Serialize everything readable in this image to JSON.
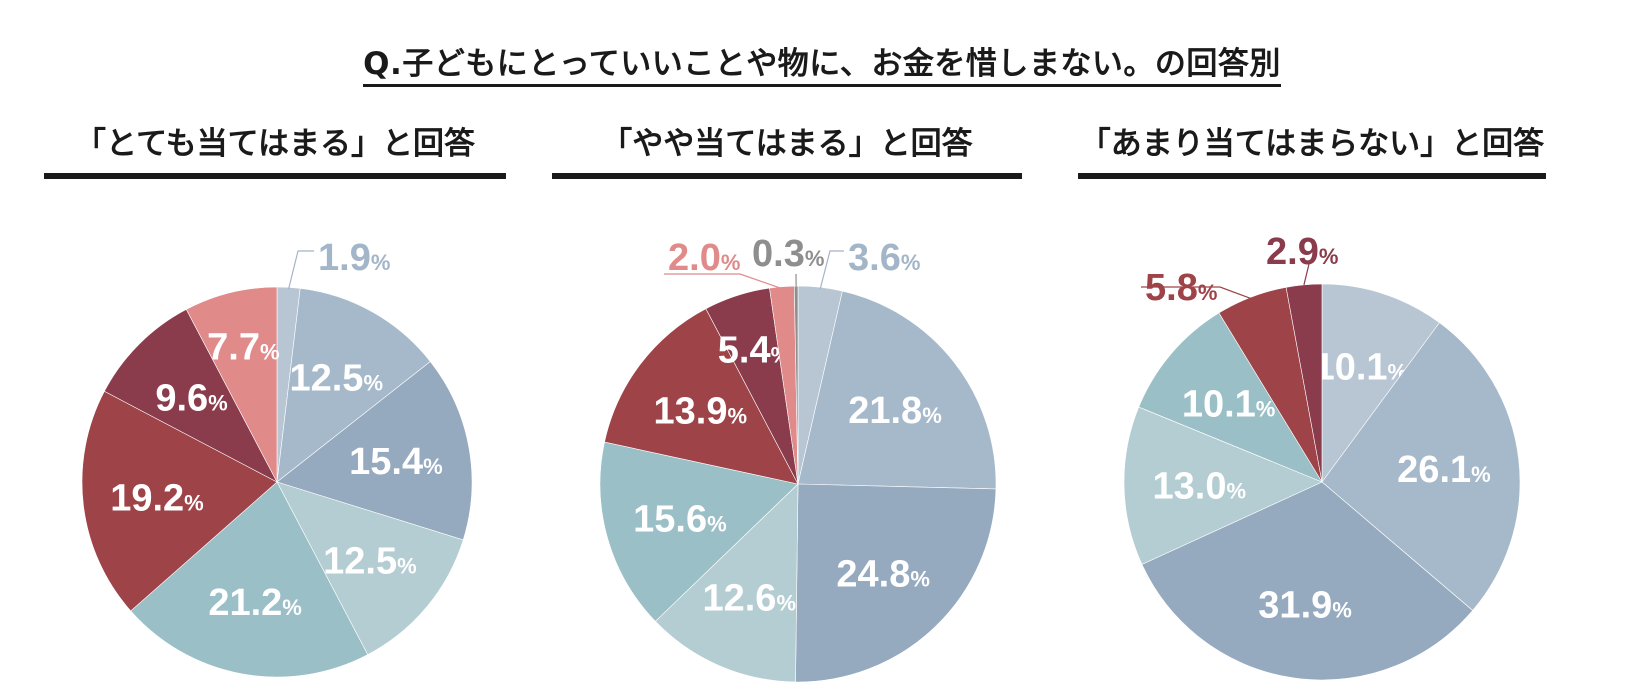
{
  "header": {
    "title": "Q.子どもにとっていいことや物に、お金を惜しまない。の回答別"
  },
  "chart_data": [
    {
      "type": "pie",
      "title": "「とても当てはまる」と回答",
      "unit": "%",
      "slices": [
        {
          "value": 1.9,
          "label": "1.9",
          "color": "#b8c6d4",
          "placement": "outside"
        },
        {
          "value": 12.5,
          "label": "12.5",
          "color": "#a6b9cb",
          "placement": "inside"
        },
        {
          "value": 15.4,
          "label": "15.4",
          "color": "#95a9bf",
          "placement": "inside"
        },
        {
          "value": 12.5,
          "label": "12.5",
          "color": "#b4cdd3",
          "placement": "inside"
        },
        {
          "value": 21.2,
          "label": "21.2",
          "color": "#9bbfc6",
          "placement": "inside"
        },
        {
          "value": 19.2,
          "label": "19.2",
          "color": "#9e4347",
          "placement": "inside"
        },
        {
          "value": 9.6,
          "label": "9.6",
          "color": "#8a3c4c",
          "placement": "inside"
        },
        {
          "value": 7.7,
          "label": "7.7",
          "color": "#e08a8a",
          "placement": "inside"
        }
      ]
    },
    {
      "type": "pie",
      "title": "「やや当てはまる」と回答",
      "unit": "%",
      "slices": [
        {
          "value": 3.6,
          "label": "3.6",
          "color": "#b8c6d4",
          "placement": "outside"
        },
        {
          "value": 21.8,
          "label": "21.8",
          "color": "#a6b9cb",
          "placement": "inside"
        },
        {
          "value": 24.8,
          "label": "24.8",
          "color": "#95a9bf",
          "placement": "inside"
        },
        {
          "value": 12.6,
          "label": "12.6",
          "color": "#b4cdd3",
          "placement": "inside"
        },
        {
          "value": 15.6,
          "label": "15.6",
          "color": "#9bbfc6",
          "placement": "inside"
        },
        {
          "value": 13.9,
          "label": "13.9",
          "color": "#9e4347",
          "placement": "inside"
        },
        {
          "value": 5.4,
          "label": "5.4",
          "color": "#8a3c4c",
          "placement": "inside"
        },
        {
          "value": 2.0,
          "label": "2.0",
          "color": "#e08a8a",
          "placement": "outside"
        },
        {
          "value": 0.3,
          "label": "0.3",
          "color": "#8e8e8e",
          "placement": "outside"
        }
      ]
    },
    {
      "type": "pie",
      "title": "「あまり当てはまらない」と回答",
      "unit": "%",
      "slices": [
        {
          "value": 10.1,
          "label": "10.1",
          "color": "#b8c6d4",
          "placement": "inside"
        },
        {
          "value": 26.1,
          "label": "26.1",
          "color": "#a6b9cb",
          "placement": "inside"
        },
        {
          "value": 31.9,
          "label": "31.9",
          "color": "#95a9bf",
          "placement": "inside"
        },
        {
          "value": 13.0,
          "label": "13.0",
          "color": "#b4cdd3",
          "placement": "inside"
        },
        {
          "value": 10.1,
          "label": "10.1",
          "color": "#9bbfc6",
          "placement": "inside"
        },
        {
          "value": 5.8,
          "label": "5.8",
          "color": "#9e4347",
          "placement": "outside"
        },
        {
          "value": 2.9,
          "label": "2.9",
          "color": "#8a3c4c",
          "placement": "outside"
        }
      ]
    }
  ]
}
